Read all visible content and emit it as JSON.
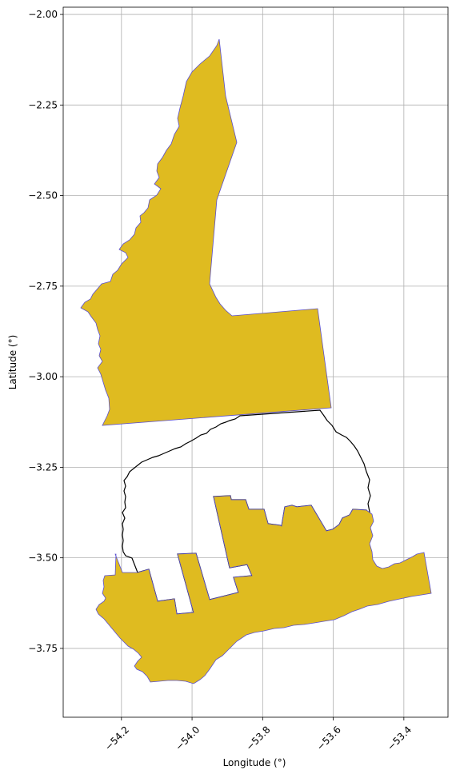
{
  "map": {
    "xlabel": "Longitude (°)",
    "ylabel": "Latitude (°)",
    "xlim": [
      -54.365,
      -53.275
    ],
    "ylim": [
      -3.94,
      -1.98
    ],
    "grid": true,
    "fill_color": "#DFBB20",
    "edge_color": "#5A4FCF",
    "outline_color": "#000000",
    "x_ticks": [
      {
        "value": -54.2,
        "label": "−54.2"
      },
      {
        "value": -54.0,
        "label": "−54.0"
      },
      {
        "value": -53.8,
        "label": "−53.8"
      },
      {
        "value": -53.6,
        "label": "−53.6"
      },
      {
        "value": -53.4,
        "label": "−53.4"
      }
    ],
    "y_ticks": [
      {
        "value": -2.0,
        "label": "−2.00"
      },
      {
        "value": -2.25,
        "label": "−2.25"
      },
      {
        "value": -2.5,
        "label": "−2.50"
      },
      {
        "value": -2.75,
        "label": "−2.75"
      },
      {
        "value": -3.0,
        "label": "−3.00"
      },
      {
        "value": -3.25,
        "label": "−3.25"
      },
      {
        "value": -3.5,
        "label": "−3.50"
      },
      {
        "value": -3.75,
        "label": "−3.75"
      }
    ]
  }
}
